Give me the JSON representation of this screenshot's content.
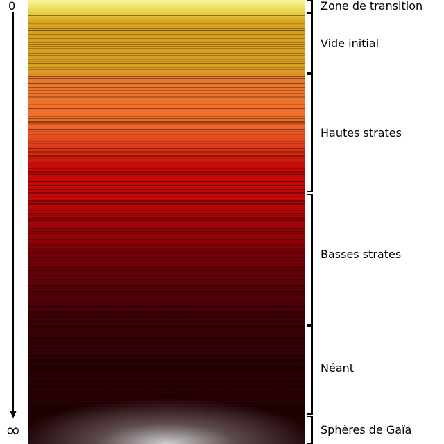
{
  "axis": {
    "top_label": "0",
    "bottom_label": "∞"
  },
  "zones": [
    {
      "label": "Zone de transition"
    },
    {
      "label": "Vide initial"
    },
    {
      "label": "Hautes strates"
    },
    {
      "label": "Basses strates"
    },
    {
      "label": "Néant"
    },
    {
      "label": "Sphères de Gaïa"
    }
  ],
  "colors": {
    "pale_yellow": "#f8f4a0",
    "yellow": "#e8d84a",
    "gold": "#d8a020",
    "orange": "#e87a2e",
    "bright_orange": "#f26a2a",
    "red": "#c80808",
    "dark_red": "#6a0008",
    "very_dark_red": "#3a0006",
    "near_black": "#180002",
    "glow": "#d8d8d8",
    "ink": "#000000"
  }
}
